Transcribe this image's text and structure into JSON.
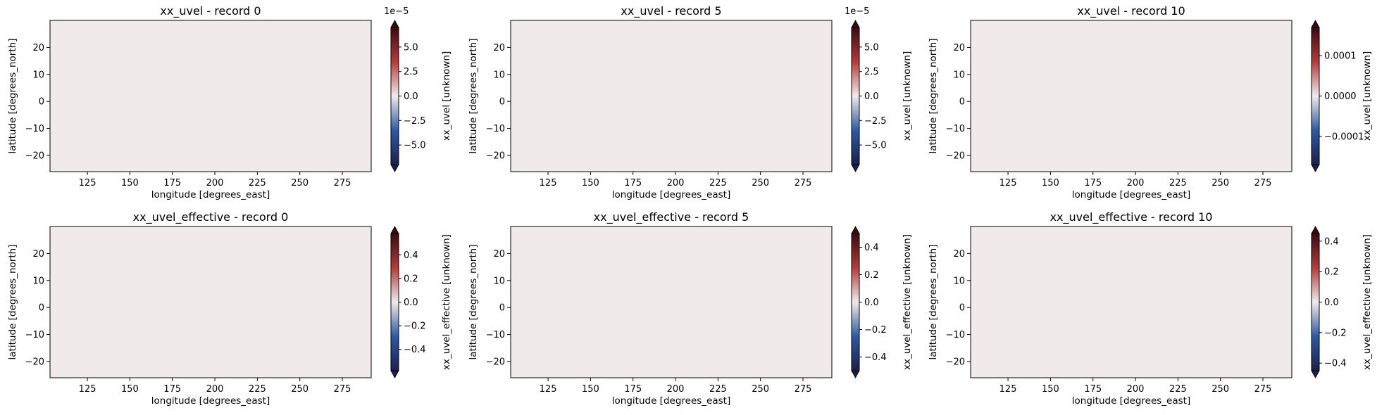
{
  "chart_data": [
    {
      "type": "heatmap",
      "title": "xx_uvel - record 0",
      "xlabel": "longitude [degrees_east]",
      "ylabel": "latitude [degrees_north]",
      "xlim": [
        103,
        292
      ],
      "ylim": [
        -26,
        30
      ],
      "xticks": [
        125,
        150,
        175,
        200,
        225,
        250,
        275
      ],
      "yticks": [
        -20,
        -10,
        0,
        10,
        20
      ],
      "colorbar": {
        "label": "xx_uvel [unknown]",
        "range": [
          -7e-05,
          7e-05
        ],
        "ticks": [
          -5e-05,
          -2.5e-05,
          0,
          2.5e-05,
          5e-05
        ],
        "tick_labels": [
          "−5.0",
          "−2.5",
          "0.0",
          "2.5",
          "5.0"
        ],
        "offset_text": "1e−5",
        "extend": "both"
      },
      "pattern": "smooth",
      "seed": 11
    },
    {
      "type": "heatmap",
      "title": "xx_uvel - record 5",
      "xlabel": "longitude [degrees_east]",
      "ylabel": "latitude [degrees_north]",
      "xlim": [
        103,
        292
      ],
      "ylim": [
        -26,
        30
      ],
      "xticks": [
        125,
        150,
        175,
        200,
        225,
        250,
        275
      ],
      "yticks": [
        -20,
        -10,
        0,
        10,
        20
      ],
      "colorbar": {
        "label": "xx_uvel [unknown]",
        "range": [
          -7e-05,
          7e-05
        ],
        "ticks": [
          -5e-05,
          -2.5e-05,
          0,
          2.5e-05,
          5e-05
        ],
        "tick_labels": [
          "−5.0",
          "−2.5",
          "0.0",
          "2.5",
          "5.0"
        ],
        "offset_text": "1e−5",
        "extend": "both"
      },
      "pattern": "smooth",
      "seed": 12
    },
    {
      "type": "heatmap",
      "title": "xx_uvel - record 10",
      "xlabel": "longitude [degrees_east]",
      "ylabel": "latitude [degrees_north]",
      "xlim": [
        103,
        292
      ],
      "ylim": [
        -26,
        30
      ],
      "xticks": [
        125,
        150,
        175,
        200,
        225,
        250,
        275
      ],
      "yticks": [
        -20,
        -10,
        0,
        10,
        20
      ],
      "colorbar": {
        "label": "xx_uvel [unknown]",
        "range": [
          -0.00017,
          0.00017
        ],
        "ticks": [
          -0.0001,
          0,
          0.0001
        ],
        "tick_labels": [
          "−0.0001",
          "0.0000",
          "0.0001"
        ],
        "offset_text": "",
        "extend": "both"
      },
      "pattern": "smooth",
      "seed": 13
    },
    {
      "type": "heatmap",
      "title": "xx_uvel_effective - record 0",
      "xlabel": "longitude [degrees_east]",
      "ylabel": "latitude [degrees_north]",
      "xlim": [
        103,
        292
      ],
      "ylim": [
        -26,
        30
      ],
      "xticks": [
        125,
        150,
        175,
        200,
        225,
        250,
        275
      ],
      "yticks": [
        -20,
        -10,
        0,
        10,
        20
      ],
      "colorbar": {
        "label": "xx_uvel_effective [unknown]",
        "range": [
          -0.58,
          0.58
        ],
        "ticks": [
          -0.4,
          -0.2,
          0,
          0.2,
          0.4
        ],
        "tick_labels": [
          "−0.4",
          "−0.2",
          "0.0",
          "0.2",
          "0.4"
        ],
        "offset_text": "",
        "extend": "both"
      },
      "pattern": "effective",
      "seed": 21
    },
    {
      "type": "heatmap",
      "title": "xx_uvel_effective - record 5",
      "xlabel": "longitude [degrees_east]",
      "ylabel": "latitude [degrees_north]",
      "xlim": [
        103,
        292
      ],
      "ylim": [
        -26,
        30
      ],
      "xticks": [
        125,
        150,
        175,
        200,
        225,
        250,
        275
      ],
      "yticks": [
        -20,
        -10,
        0,
        10,
        20
      ],
      "colorbar": {
        "label": "xx_uvel_effective [unknown]",
        "range": [
          -0.5,
          0.5
        ],
        "ticks": [
          -0.4,
          -0.2,
          0,
          0.2,
          0.4
        ],
        "tick_labels": [
          "−0.4",
          "−0.2",
          "0.0",
          "0.2",
          "0.4"
        ],
        "offset_text": "",
        "extend": "both"
      },
      "pattern": "effective",
      "seed": 22
    },
    {
      "type": "heatmap",
      "title": "xx_uvel_effective - record 10",
      "xlabel": "longitude [degrees_east]",
      "ylabel": "latitude [degrees_north]",
      "xlim": [
        103,
        292
      ],
      "ylim": [
        -26,
        30
      ],
      "xticks": [
        125,
        150,
        175,
        200,
        225,
        250,
        275
      ],
      "yticks": [
        -20,
        -10,
        0,
        10,
        20
      ],
      "colorbar": {
        "label": "xx_uvel_effective [unknown]",
        "range": [
          -0.45,
          0.45
        ],
        "ticks": [
          -0.4,
          -0.2,
          0,
          0.2,
          0.4
        ],
        "tick_labels": [
          "−0.4",
          "−0.2",
          "0.0",
          "0.2",
          "0.4"
        ],
        "offset_text": "",
        "extend": "both"
      },
      "pattern": "effective",
      "seed": 23
    }
  ],
  "colors": {
    "negative_dark": "#1b1f4e",
    "negative": "#2c5aa6",
    "neutral": "#f1eaea",
    "positive": "#b53a3a",
    "positive_dark": "#3b0a0f"
  }
}
